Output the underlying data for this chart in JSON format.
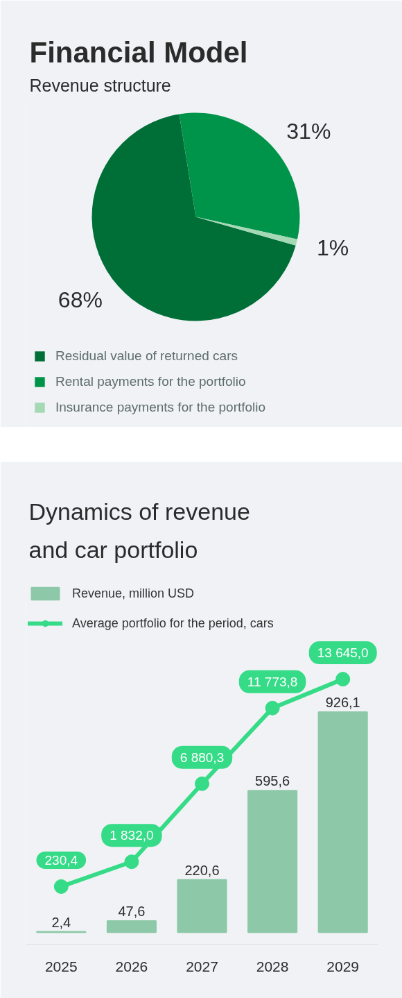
{
  "chart_data": [
    {
      "type": "pie",
      "title": "Financial Model",
      "subtitle": "Revenue structure",
      "categories": [
        "Residual value of returned cars",
        "Rental payments for the portfolio",
        "Insurance payments for the portfolio"
      ],
      "values": [
        68,
        31,
        1
      ],
      "colors": [
        "#006f37",
        "#00944a",
        "#a5d9b6"
      ],
      "value_labels": [
        "68%",
        "31%",
        "1%"
      ],
      "legend": "bottom left"
    },
    {
      "type": "bar",
      "title": "Dynamics of revenue and car portfolio",
      "categories": [
        "2025",
        "2026",
        "2027",
        "2028",
        "2029"
      ],
      "series": [
        {
          "name": "Revenue, million USD",
          "type": "bar",
          "color": "#8dc9a8",
          "values": [
            2.4,
            47.6,
            220.6,
            595.6,
            926.1
          ],
          "value_labels": [
            "2,4",
            "47,6",
            "220,6",
            "595,6",
            "926,1"
          ]
        },
        {
          "name": "Average portfolio for the period, cars",
          "type": "line",
          "axis": "y2",
          "color": "#35db86",
          "values": [
            230.4,
            1832.0,
            6880.3,
            11773.8,
            13645.0
          ],
          "value_labels": [
            "230,4",
            "1 832,0",
            "6 880,3",
            "11 773,8",
            "13 645,0"
          ]
        }
      ],
      "ylim": [
        -50,
        1465
      ],
      "y2lim": [
        -3500,
        19800
      ],
      "tick_labels": "x",
      "legend": "top left",
      "marker": "circle"
    }
  ]
}
